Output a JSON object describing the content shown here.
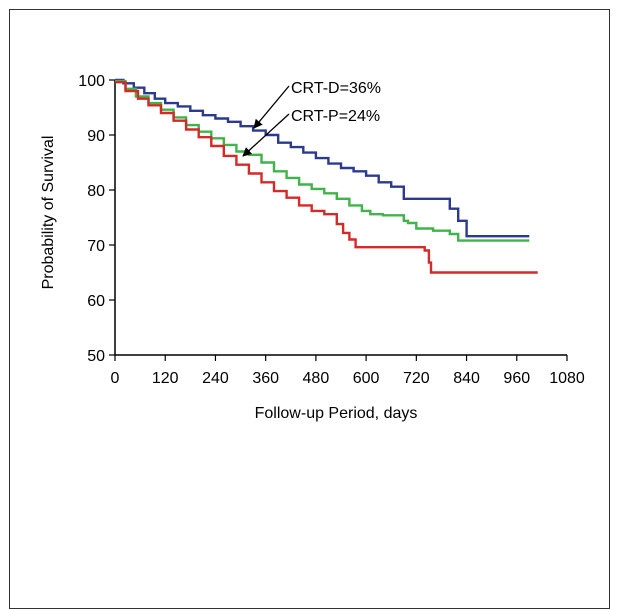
{
  "chart_data": {
    "type": "line",
    "title": "",
    "xlabel": "Follow-up Period, days",
    "ylabel": "Probability of Survival",
    "xlim": [
      0,
      1080
    ],
    "ylim": [
      50,
      100
    ],
    "xticks": [
      0,
      120,
      240,
      360,
      480,
      600,
      720,
      840,
      960,
      1080
    ],
    "yticks": [
      50,
      60,
      70,
      80,
      90,
      100
    ],
    "grid": false,
    "legend": "none",
    "annotations": [
      "CRT-D=36%",
      "CRT-P=24%"
    ],
    "series": [
      {
        "color": "#2b3a8f",
        "step": true,
        "points": [
          [
            0,
            100
          ],
          [
            20,
            99.4
          ],
          [
            45,
            98.6
          ],
          [
            70,
            97.6
          ],
          [
            95,
            96.6
          ],
          [
            120,
            95.8
          ],
          [
            150,
            95.2
          ],
          [
            180,
            94.4
          ],
          [
            210,
            93.6
          ],
          [
            240,
            93.0
          ],
          [
            270,
            92.4
          ],
          [
            300,
            91.6
          ],
          [
            330,
            90.8
          ],
          [
            360,
            90.0
          ],
          [
            390,
            88.6
          ],
          [
            420,
            87.8
          ],
          [
            450,
            86.8
          ],
          [
            480,
            85.8
          ],
          [
            510,
            84.8
          ],
          [
            540,
            84.0
          ],
          [
            570,
            83.4
          ],
          [
            600,
            82.6
          ],
          [
            630,
            81.4
          ],
          [
            660,
            80.6
          ],
          [
            690,
            78.4
          ],
          [
            740,
            78.4
          ],
          [
            780,
            78.4
          ],
          [
            800,
            76.6
          ],
          [
            820,
            74.4
          ],
          [
            840,
            71.6
          ],
          [
            990,
            71.6
          ]
        ]
      },
      {
        "color": "#3fb44a",
        "step": true,
        "points": [
          [
            0,
            99.8
          ],
          [
            25,
            98.4
          ],
          [
            50,
            97.0
          ],
          [
            80,
            95.8
          ],
          [
            110,
            94.6
          ],
          [
            140,
            93.2
          ],
          [
            170,
            91.8
          ],
          [
            200,
            90.6
          ],
          [
            230,
            89.4
          ],
          [
            260,
            88.2
          ],
          [
            290,
            87.0
          ],
          [
            320,
            86.4
          ],
          [
            350,
            85.0
          ],
          [
            380,
            83.4
          ],
          [
            410,
            82.2
          ],
          [
            440,
            81.0
          ],
          [
            470,
            80.2
          ],
          [
            500,
            79.4
          ],
          [
            530,
            78.4
          ],
          [
            560,
            77.2
          ],
          [
            590,
            76.2
          ],
          [
            610,
            75.6
          ],
          [
            640,
            75.4
          ],
          [
            660,
            75.4
          ],
          [
            690,
            74.4
          ],
          [
            700,
            74.0
          ],
          [
            720,
            73.0
          ],
          [
            760,
            72.6
          ],
          [
            800,
            72.0
          ],
          [
            820,
            70.8
          ],
          [
            990,
            70.8
          ]
        ]
      },
      {
        "color": "#d42a28",
        "step": true,
        "points": [
          [
            0,
            99.6
          ],
          [
            25,
            98.0
          ],
          [
            55,
            96.6
          ],
          [
            80,
            95.4
          ],
          [
            110,
            94.0
          ],
          [
            140,
            92.6
          ],
          [
            170,
            91.0
          ],
          [
            200,
            89.6
          ],
          [
            230,
            88.0
          ],
          [
            260,
            86.2
          ],
          [
            290,
            84.6
          ],
          [
            320,
            83.0
          ],
          [
            350,
            81.4
          ],
          [
            380,
            79.8
          ],
          [
            410,
            78.6
          ],
          [
            440,
            77.2
          ],
          [
            470,
            76.2
          ],
          [
            500,
            75.6
          ],
          [
            520,
            75.6
          ],
          [
            530,
            73.8
          ],
          [
            545,
            72.2
          ],
          [
            560,
            71.0
          ],
          [
            575,
            69.6
          ],
          [
            620,
            69.6
          ],
          [
            700,
            69.6
          ],
          [
            740,
            69.0
          ],
          [
            750,
            66.8
          ],
          [
            755,
            65.0
          ],
          [
            1010,
            65.0
          ]
        ]
      }
    ]
  }
}
